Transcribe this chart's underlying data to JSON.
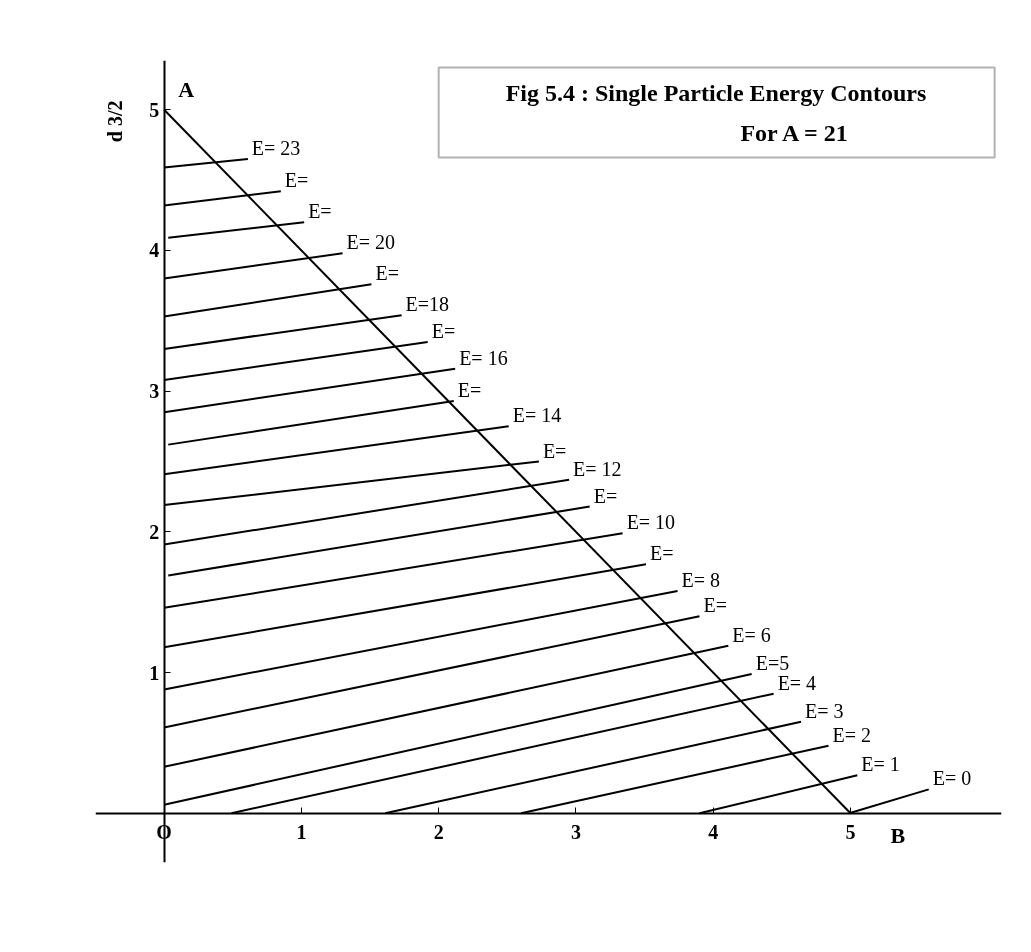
{
  "chart_data": {
    "type": "line",
    "title": "Fig 5.4 : Single Particle Energy Contours",
    "subtitle": "For A = 21",
    "ylabel": "d 3/2",
    "xlim": [
      -0.5,
      6.1
    ],
    "ylim": [
      -0.35,
      5.35
    ],
    "xticks": [
      {
        "value": 0,
        "label": "O"
      },
      1,
      2,
      3,
      4,
      5
    ],
    "yticks": [
      1,
      2,
      3,
      4,
      5
    ],
    "annotations": [
      {
        "text": "A",
        "x": 0,
        "y": 5
      },
      {
        "text": "B",
        "x": 5,
        "y": 0
      }
    ],
    "series": [
      {
        "color": "#000000",
        "x": [
          0,
          5
        ],
        "values": [
          5,
          0
        ]
      },
      {
        "name": "E= 23",
        "color": "#000000",
        "x": [
          0,
          0.61
        ],
        "values": [
          4.59,
          4.65
        ]
      },
      {
        "name": "E=",
        "color": "#000000",
        "x": [
          0,
          0.85
        ],
        "values": [
          4.32,
          4.42
        ]
      },
      {
        "name": "E=",
        "color": "#000000",
        "x": [
          0.03,
          1.02
        ],
        "values": [
          4.09,
          4.2
        ]
      },
      {
        "name": "E= 20",
        "color": "#000000",
        "x": [
          0,
          1.3
        ],
        "values": [
          3.8,
          3.98
        ]
      },
      {
        "name": "E=",
        "color": "#000000",
        "x": [
          0,
          1.51
        ],
        "values": [
          3.53,
          3.76
        ]
      },
      {
        "name": "E=18",
        "color": "#000000",
        "x": [
          0,
          1.73
        ],
        "values": [
          3.3,
          3.54
        ]
      },
      {
        "name": "E=",
        "color": "#000000",
        "x": [
          0,
          1.92
        ],
        "values": [
          3.08,
          3.35
        ]
      },
      {
        "name": "E= 16",
        "color": "#000000",
        "x": [
          0,
          2.12
        ],
        "values": [
          2.85,
          3.16
        ]
      },
      {
        "name": "E=",
        "color": "#000000",
        "x": [
          0.03,
          2.11
        ],
        "values": [
          2.62,
          2.93
        ]
      },
      {
        "name": "E= 14",
        "color": "#000000",
        "x": [
          0,
          2.51
        ],
        "values": [
          2.41,
          2.75
        ]
      },
      {
        "name": "E=",
        "color": "#000000",
        "x": [
          0,
          2.73
        ],
        "values": [
          2.19,
          2.5
        ]
      },
      {
        "name": "E= 12",
        "color": "#000000",
        "x": [
          0,
          2.95
        ],
        "values": [
          1.91,
          2.37
        ]
      },
      {
        "name": "E=",
        "color": "#000000",
        "x": [
          0.03,
          3.1
        ],
        "values": [
          1.69,
          2.18
        ]
      },
      {
        "name": "E= 10",
        "color": "#000000",
        "x": [
          0,
          3.34
        ],
        "values": [
          1.46,
          1.99
        ]
      },
      {
        "name": "E=",
        "color": "#000000",
        "x": [
          0,
          3.51
        ],
        "values": [
          1.18,
          1.77
        ]
      },
      {
        "name": "E= 8",
        "color": "#000000",
        "x": [
          0,
          3.74
        ],
        "values": [
          0.88,
          1.58
        ]
      },
      {
        "name": "E=",
        "color": "#000000",
        "x": [
          0,
          3.9
        ],
        "values": [
          0.61,
          1.4
        ]
      },
      {
        "name": "E= 6",
        "color": "#000000",
        "x": [
          0,
          4.11
        ],
        "values": [
          0.33,
          1.19
        ]
      },
      {
        "name": "E=5",
        "color": "#000000",
        "x": [
          0,
          4.28
        ],
        "values": [
          0.06,
          0.99
        ]
      },
      {
        "name": "E= 4",
        "color": "#000000",
        "x": [
          0.49,
          4.44
        ],
        "values": [
          0,
          0.85
        ]
      },
      {
        "name": "E= 3",
        "color": "#000000",
        "x": [
          1.61,
          4.64
        ],
        "values": [
          0,
          0.65
        ]
      },
      {
        "name": "E= 2",
        "color": "#000000",
        "x": [
          2.6,
          4.84
        ],
        "values": [
          0,
          0.48
        ]
      },
      {
        "name": "E= 1",
        "color": "#000000",
        "x": [
          3.9,
          5.05
        ],
        "values": [
          0,
          0.27
        ]
      },
      {
        "name": "E= 0",
        "color": "#000000",
        "x": [
          4.99,
          5.57
        ],
        "values": [
          0,
          0.17
        ]
      }
    ]
  }
}
